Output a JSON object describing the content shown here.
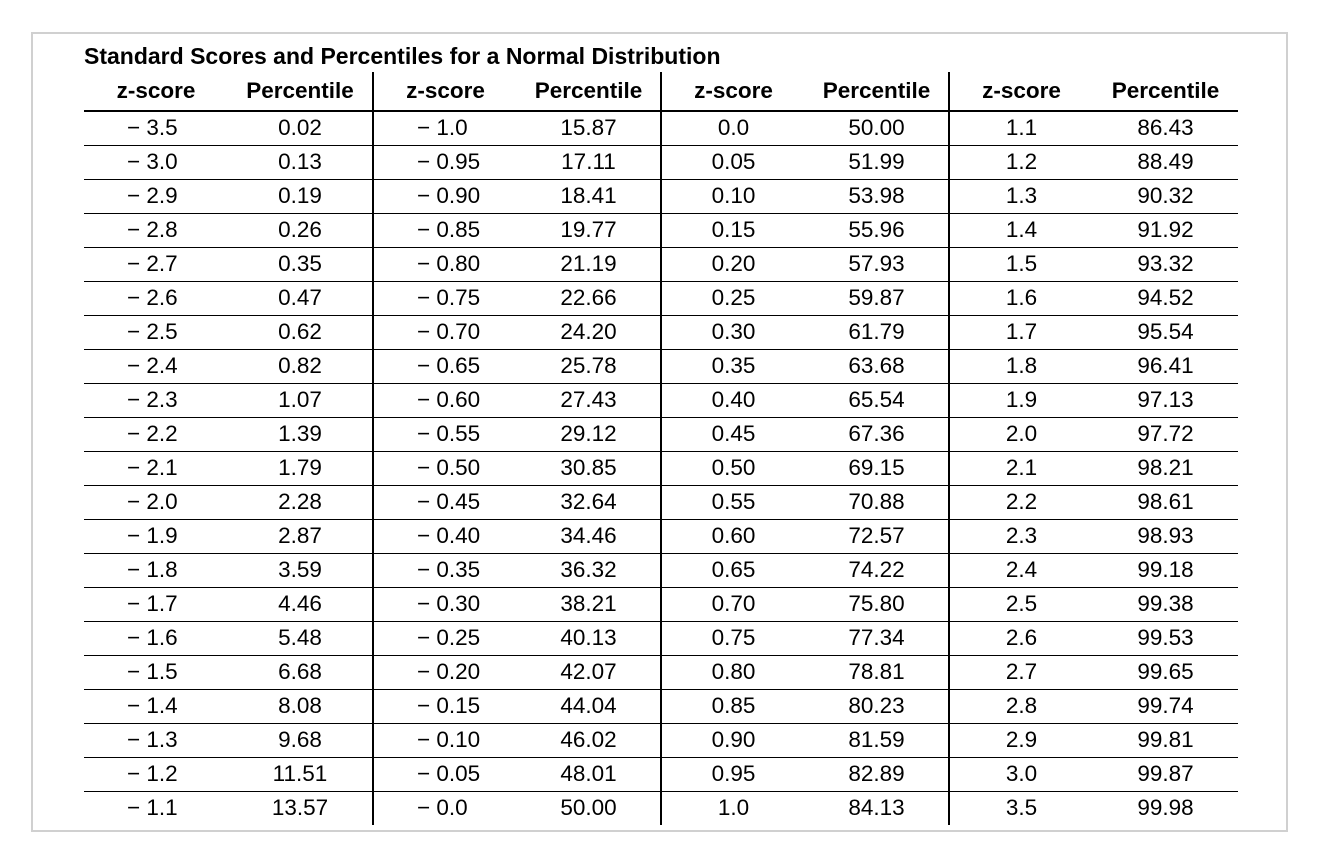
{
  "title": "Standard Scores and Percentiles for a Normal Distribution",
  "headers": [
    "z-score",
    "Percentile",
    "z-score",
    "Percentile",
    "z-score",
    "Percentile",
    "z-score",
    "Percentile"
  ],
  "rows": [
    [
      "− 3.5",
      "0.02",
      "− 1.0",
      "15.87",
      "0.0",
      "50.00",
      "1.1",
      "86.43"
    ],
    [
      "− 3.0",
      "0.13",
      "− 0.95",
      "17.11",
      "0.05",
      "51.99",
      "1.2",
      "88.49"
    ],
    [
      "− 2.9",
      "0.19",
      "− 0.90",
      "18.41",
      "0.10",
      "53.98",
      "1.3",
      "90.32"
    ],
    [
      "− 2.8",
      "0.26",
      "− 0.85",
      "19.77",
      "0.15",
      "55.96",
      "1.4",
      "91.92"
    ],
    [
      "− 2.7",
      "0.35",
      "− 0.80",
      "21.19",
      "0.20",
      "57.93",
      "1.5",
      "93.32"
    ],
    [
      "− 2.6",
      "0.47",
      "− 0.75",
      "22.66",
      "0.25",
      "59.87",
      "1.6",
      "94.52"
    ],
    [
      "− 2.5",
      "0.62",
      "− 0.70",
      "24.20",
      "0.30",
      "61.79",
      "1.7",
      "95.54"
    ],
    [
      "− 2.4",
      "0.82",
      "− 0.65",
      "25.78",
      "0.35",
      "63.68",
      "1.8",
      "96.41"
    ],
    [
      "− 2.3",
      "1.07",
      "− 0.60",
      "27.43",
      "0.40",
      "65.54",
      "1.9",
      "97.13"
    ],
    [
      "− 2.2",
      "1.39",
      "− 0.55",
      "29.12",
      "0.45",
      "67.36",
      "2.0",
      "97.72"
    ],
    [
      "− 2.1",
      "1.79",
      "− 0.50",
      "30.85",
      "0.50",
      "69.15",
      "2.1",
      "98.21"
    ],
    [
      "− 2.0",
      "2.28",
      "− 0.45",
      "32.64",
      "0.55",
      "70.88",
      "2.2",
      "98.61"
    ],
    [
      "− 1.9",
      "2.87",
      "− 0.40",
      "34.46",
      "0.60",
      "72.57",
      "2.3",
      "98.93"
    ],
    [
      "− 1.8",
      "3.59",
      "− 0.35",
      "36.32",
      "0.65",
      "74.22",
      "2.4",
      "99.18"
    ],
    [
      "− 1.7",
      "4.46",
      "− 0.30",
      "38.21",
      "0.70",
      "75.80",
      "2.5",
      "99.38"
    ],
    [
      "− 1.6",
      "5.48",
      "− 0.25",
      "40.13",
      "0.75",
      "77.34",
      "2.6",
      "99.53"
    ],
    [
      "− 1.5",
      "6.68",
      "− 0.20",
      "42.07",
      "0.80",
      "78.81",
      "2.7",
      "99.65"
    ],
    [
      "− 1.4",
      "8.08",
      "− 0.15",
      "44.04",
      "0.85",
      "80.23",
      "2.8",
      "99.74"
    ],
    [
      "− 1.3",
      "9.68",
      "− 0.10",
      "46.02",
      "0.90",
      "81.59",
      "2.9",
      "99.81"
    ],
    [
      "− 1.2",
      "11.51",
      "− 0.05",
      "48.01",
      "0.95",
      "82.89",
      "3.0",
      "99.87"
    ],
    [
      "− 1.1",
      "13.57",
      "− 0.0",
      "50.00",
      "1.0",
      "84.13",
      "3.5",
      "99.98"
    ]
  ]
}
